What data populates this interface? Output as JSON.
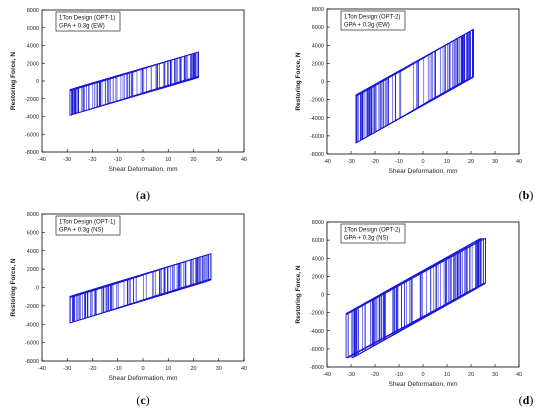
{
  "chart_data": [
    {
      "type": "line",
      "panel": "a",
      "caption_letter": "a",
      "annotation": [
        "1Ton Design (OPT-1)",
        "GPA + 0.3g (EW)"
      ],
      "xlabel": "Shear Deformation, mm",
      "ylabel": "Restoring Force, N",
      "xlim": [
        -40,
        40
      ],
      "ylim": [
        -8000,
        8000
      ],
      "xticks": [
        -40,
        -30,
        -20,
        -10,
        0,
        10,
        20,
        30,
        40
      ],
      "yticks": [
        -8000,
        -6000,
        -4000,
        -2000,
        0,
        2000,
        4000,
        6000,
        8000
      ],
      "grid": false,
      "series_color": "#1a1ad6",
      "envelope": {
        "x_min": -29,
        "x_max": 22,
        "slope": 85,
        "band": 1400,
        "f_min": -5000,
        "f_max": 4400
      }
    },
    {
      "type": "line",
      "panel": "b",
      "caption_letter": "b",
      "annotation": [
        "1Ton Design (OPT-2)",
        "GPA + 0.3g (EW)"
      ],
      "xlabel": "Shear Deformation, mm",
      "ylabel": "Restoring Force, N",
      "xlim": [
        -40,
        40
      ],
      "ylim": [
        -8000,
        8000
      ],
      "xticks": [
        -40,
        -30,
        -20,
        -10,
        0,
        10,
        20,
        30,
        40
      ],
      "yticks": [
        -8000,
        -6000,
        -4000,
        -2000,
        0,
        2000,
        4000,
        6000,
        8000
      ],
      "grid": false,
      "series_color": "#1a1ad6",
      "envelope": {
        "x_min": -28,
        "x_max": 21,
        "slope": 150,
        "band": 2600,
        "f_min": -6800,
        "f_max": 5900
      }
    },
    {
      "type": "line",
      "panel": "c",
      "caption_letter": "c",
      "annotation": [
        "1Ton Design (OPT-1)",
        "GPA + 0.3g (NS)"
      ],
      "xlabel": "Shear Deformation, mm",
      "ylabel": "Restoring Force, N",
      "xlim": [
        -40,
        40
      ],
      "ylim": [
        -8000,
        8000
      ],
      "xticks": [
        -40,
        -30,
        -20,
        -10,
        0,
        10,
        20,
        30,
        40
      ],
      "yticks": [
        -8000,
        -6000,
        -4000,
        -2000,
        0,
        2000,
        4000,
        6000,
        8000
      ],
      "grid": false,
      "series_color": "#1a1ad6",
      "envelope": {
        "x_min": -29,
        "x_max": 27,
        "slope": 85,
        "band": 1400,
        "f_min": -5000,
        "f_max": 5000
      }
    },
    {
      "type": "line",
      "panel": "d",
      "caption_letter": "d",
      "annotation": [
        "1Ton Design (OPT-2)",
        "GPA + 0.3g (NS)"
      ],
      "xlabel": "Shear Deformation, mm",
      "ylabel": "Restoring Force, N",
      "xlim": [
        -40,
        40
      ],
      "ylim": [
        -8000,
        8000
      ],
      "xticks": [
        -40,
        -30,
        -20,
        -10,
        0,
        10,
        20,
        30,
        40
      ],
      "yticks": [
        -8000,
        -6000,
        -4000,
        -2000,
        0,
        2000,
        4000,
        6000,
        8000
      ],
      "grid": false,
      "series_color": "#1a1ad6",
      "envelope": {
        "x_min": -32,
        "x_max": 26,
        "slope": 150,
        "band": 2600,
        "f_min": -7000,
        "f_max": 6200
      }
    }
  ]
}
